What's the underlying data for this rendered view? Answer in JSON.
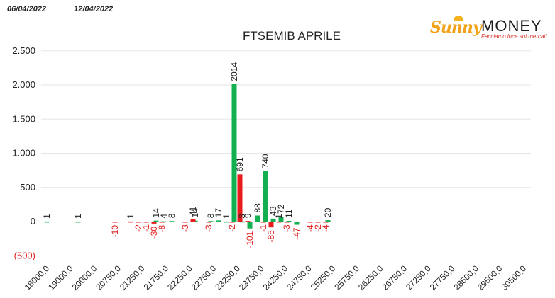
{
  "header": {
    "date_from": "06/04/2022",
    "date_to": "12/04/2022"
  },
  "logo": {
    "brand_script": "Sunny",
    "brand_word": "MONEY",
    "tagline": "Facciamo luce sui mercati"
  },
  "colors": {
    "positive": "#12b050",
    "negative": "#e81c1c",
    "positive_label": "#222222",
    "negative_label": "#e02020",
    "grid": "#e6e6e6"
  },
  "chart_data": {
    "type": "bar",
    "title": "FTSEMIB APRILE",
    "ylim": [
      -500,
      2500
    ],
    "yticks": [
      {
        "value": 2500,
        "label": "2.500"
      },
      {
        "value": 2000,
        "label": "2.000"
      },
      {
        "value": 1500,
        "label": "1.500"
      },
      {
        "value": 1000,
        "label": "1.000"
      },
      {
        "value": 500,
        "label": "500"
      },
      {
        "value": 0,
        "label": "0"
      },
      {
        "value": -500,
        "label": "(500)"
      }
    ],
    "grid": true,
    "x_tick_labels": [
      "18000,0",
      "19000,0",
      "20000,0",
      "20750,0",
      "21250,0",
      "21750,0",
      "22250,0",
      "22750,0",
      "23250,0",
      "23750,0",
      "24250,0",
      "24750,0",
      "25250,0",
      "25750,0",
      "26250,0",
      "26750,0",
      "27250,0",
      "27750,0",
      "28500,0",
      "29500,0",
      "30500,0"
    ],
    "series": [
      {
        "color": "#12b050",
        "x": [
          18000,
          19000,
          20000,
          20500,
          20750,
          21000,
          21250,
          21500,
          21750,
          22000,
          22250,
          22500,
          22750,
          23000,
          23250,
          23500,
          23750,
          24000,
          24250,
          24500,
          24750,
          25000,
          25250,
          25500,
          25750,
          26000,
          26250,
          26500,
          26750,
          27000
        ],
        "values": [
          1,
          1,
          null,
          null,
          null,
          null,
          null,
          14,
          4,
          8,
          null,
          null,
          14,
          null,
          8,
          17,
          1,
          2014,
          3,
          -101,
          88,
          740,
          43,
          72,
          11,
          -47,
          null,
          null,
          null,
          20
        ]
      },
      {
        "color": "#e81c1c",
        "x": [
          18000,
          19000,
          20000,
          20500,
          20750,
          21000,
          21250,
          21500,
          21750,
          22000,
          22250,
          22500,
          22750,
          23000,
          23250,
          23500,
          23750,
          24000,
          24250,
          24500,
          24750,
          25000,
          25250,
          25500,
          25750,
          26000,
          26250,
          26500,
          26750,
          27000
        ],
        "values": [
          null,
          null,
          -10,
          1,
          -2,
          -1,
          -30,
          -8,
          null,
          null,
          -3,
          41,
          null,
          -3,
          null,
          null,
          -2,
          691,
          9,
          null,
          -1,
          -85,
          1,
          -3,
          null,
          null,
          -4,
          -2,
          -4,
          null
        ]
      }
    ]
  }
}
